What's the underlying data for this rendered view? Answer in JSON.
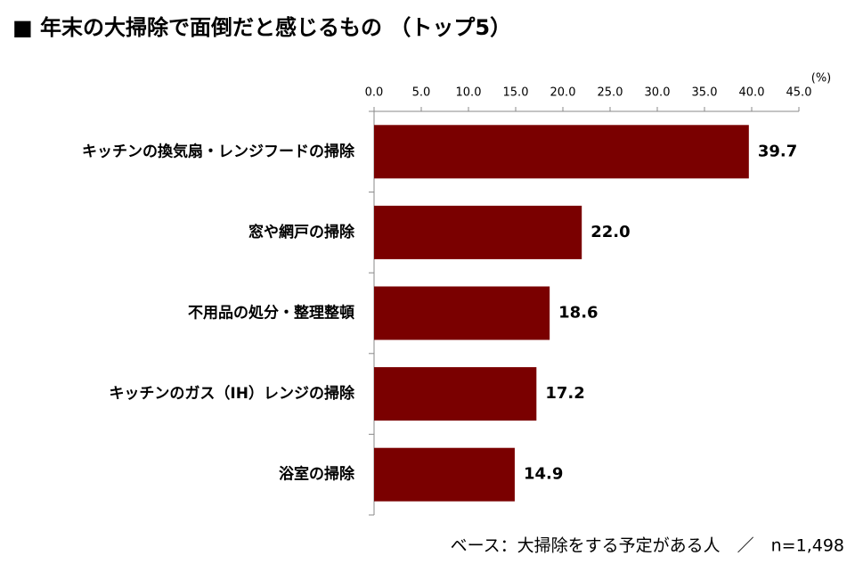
{
  "chart_data": {
    "type": "hbar",
    "title": "■ 年末の大掃除で面倒だと感じるもの （トップ5）",
    "unit": "(%)",
    "note": "ベース：大掃除をする予定がある人　／　n=1,498",
    "categories": [
      "キッチンの換気扇・レンジフードの掃除",
      "窓や網戸の掃除",
      "不用品の処分・整理整頓",
      "キッチンのガス（IH）レンジの掃除",
      "浴室の掃除"
    ],
    "values": [
      39.7,
      22.0,
      18.6,
      17.2,
      14.9
    ],
    "value_labels": [
      "39.7",
      "22.0",
      "18.6",
      "17.2",
      "14.9"
    ],
    "color": "#7a0000",
    "xlim": [
      0,
      45
    ],
    "xticks": [
      {
        "value": 0,
        "label": "0.0"
      },
      {
        "value": 5,
        "label": "5.0"
      },
      {
        "value": 10,
        "label": "10.0"
      },
      {
        "value": 15,
        "label": "15.0"
      },
      {
        "value": 20,
        "label": "20.0"
      },
      {
        "value": 25,
        "label": "25.0"
      },
      {
        "value": 30,
        "label": "30.0"
      },
      {
        "value": 35,
        "label": "35.0"
      },
      {
        "value": 40,
        "label": "40.0"
      },
      {
        "value": 45,
        "label": "45.0"
      }
    ]
  }
}
